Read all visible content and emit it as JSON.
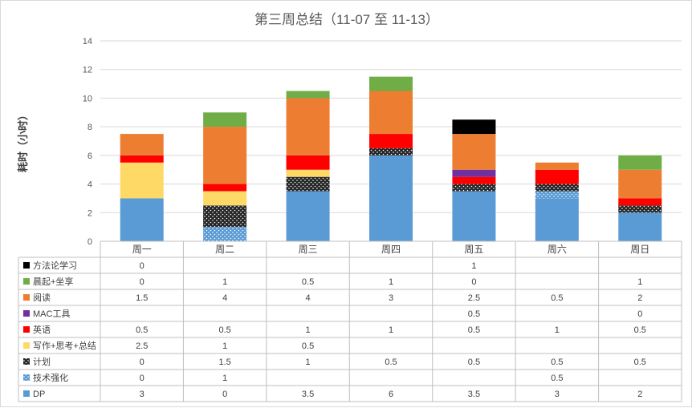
{
  "chart_data": {
    "type": "bar",
    "stacked": true,
    "title": "第三周总结（11-07 至 11-13）",
    "ylabel": "耗时（小时）",
    "xlabel": "",
    "ylim": [
      0,
      14
    ],
    "yticks": [
      0,
      2,
      4,
      6,
      8,
      10,
      12,
      14
    ],
    "grid": true,
    "legend": "data-table",
    "categories": [
      "周一",
      "周二",
      "周三",
      "周四",
      "周五",
      "周六",
      "周日"
    ],
    "series": [
      {
        "name": "DP",
        "color": "#5b9bd5",
        "pattern": "solid",
        "values": [
          "3",
          "0",
          "3.5",
          "6",
          "3.5",
          "3",
          "2"
        ]
      },
      {
        "name": "技术强化",
        "color": "#5b9bd5",
        "pattern": "dots",
        "values": [
          "0",
          "1",
          "",
          "",
          "",
          "0.5",
          ""
        ]
      },
      {
        "name": "计划",
        "color": "#262626",
        "pattern": "dots",
        "values": [
          "0",
          "1.5",
          "1",
          "0.5",
          "0.5",
          "0.5",
          "0.5"
        ]
      },
      {
        "name": "写作+思考+总结",
        "color": "#ffd966",
        "pattern": "solid",
        "values": [
          "2.5",
          "1",
          "0.5",
          "",
          "",
          "",
          ""
        ]
      },
      {
        "name": "英语",
        "color": "#ff0000",
        "pattern": "solid",
        "values": [
          "0.5",
          "0.5",
          "1",
          "1",
          "0.5",
          "1",
          "0.5"
        ]
      },
      {
        "name": "MAC工具",
        "color": "#7030a0",
        "pattern": "solid",
        "values": [
          "",
          "",
          "",
          "",
          "0.5",
          "",
          "0"
        ]
      },
      {
        "name": "阅读",
        "color": "#ed7d31",
        "pattern": "solid",
        "values": [
          "1.5",
          "4",
          "4",
          "3",
          "2.5",
          "0.5",
          "2"
        ]
      },
      {
        "name": "晨起+坐享",
        "color": "#70ad47",
        "pattern": "solid",
        "values": [
          "0",
          "1",
          "0.5",
          "1",
          "0",
          "",
          "1"
        ]
      },
      {
        "name": "方法论学习",
        "color": "#000000",
        "pattern": "solid",
        "values": [
          "0",
          "",
          "",
          "",
          "1",
          "",
          ""
        ]
      }
    ]
  }
}
